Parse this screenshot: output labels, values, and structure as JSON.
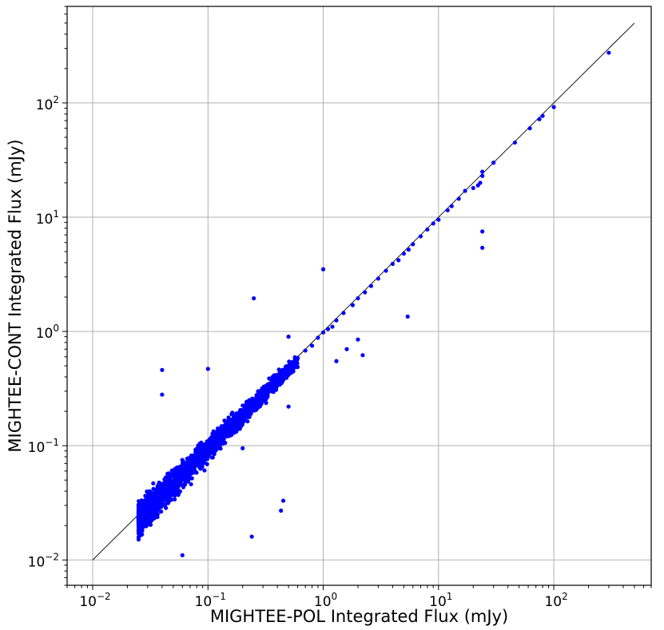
{
  "chart_data": {
    "type": "scatter",
    "title": "",
    "xlabel": "MIGHTEE-POL Integrated Flux (mJy)",
    "ylabel": "MIGHTEE-CONT Integrated Flux (mJy)",
    "x_scale": "log",
    "y_scale": "log",
    "xlim": [
      0.006,
      700
    ],
    "ylim": [
      0.006,
      700
    ],
    "x_ticks": [
      {
        "value": 0.01,
        "base": "10",
        "exp": "−2"
      },
      {
        "value": 0.1,
        "base": "10",
        "exp": "−1"
      },
      {
        "value": 1,
        "base": "10",
        "exp": "0"
      },
      {
        "value": 10,
        "base": "10",
        "exp": "1"
      },
      {
        "value": 100,
        "base": "10",
        "exp": "2"
      }
    ],
    "y_ticks": [
      {
        "value": 0.01,
        "base": "10",
        "exp": "−2"
      },
      {
        "value": 0.1,
        "base": "10",
        "exp": "−1"
      },
      {
        "value": 1,
        "base": "10",
        "exp": "0"
      },
      {
        "value": 10,
        "base": "10",
        "exp": "1"
      },
      {
        "value": 100,
        "base": "10",
        "exp": "2"
      }
    ],
    "grid": true,
    "reference_line": {
      "type": "one-to-one",
      "x": [
        0.01,
        500
      ],
      "y": [
        0.01,
        500
      ],
      "color": "#000000"
    },
    "series": [
      {
        "color": "#0000ff",
        "points": [
          [
            300,
            275
          ],
          [
            100,
            92
          ],
          [
            80,
            77
          ],
          [
            75,
            72
          ],
          [
            62,
            60
          ],
          [
            46,
            45
          ],
          [
            30,
            30
          ],
          [
            24,
            23
          ],
          [
            23,
            20
          ],
          [
            22,
            19
          ],
          [
            20,
            18
          ],
          [
            17,
            17
          ],
          [
            15,
            14.5
          ],
          [
            13,
            12.5
          ],
          [
            12,
            11.5
          ],
          [
            10,
            9.5
          ],
          [
            9,
            8.8
          ],
          [
            8,
            7.8
          ],
          [
            7,
            6.8
          ],
          [
            6,
            5.8
          ],
          [
            5.5,
            5.2
          ],
          [
            5,
            4.8
          ],
          [
            4.5,
            4.2
          ],
          [
            4,
            3.9
          ],
          [
            3.5,
            3.4
          ],
          [
            3,
            2.9
          ],
          [
            2.6,
            2.5
          ],
          [
            2.3,
            2.2
          ],
          [
            2,
            1.95
          ],
          [
            1.8,
            1.7
          ],
          [
            1.5,
            1.45
          ],
          [
            1.3,
            1.25
          ],
          [
            1.2,
            1.1
          ],
          [
            1.1,
            1.05
          ],
          [
            1,
            0.98
          ],
          [
            0.9,
            0.88
          ],
          [
            0.8,
            0.75
          ],
          [
            0.7,
            0.68
          ],
          [
            0.6,
            0.58
          ],
          [
            0.5,
            0.48
          ],
          [
            0.45,
            0.44
          ],
          [
            0.4,
            0.38
          ],
          [
            0.35,
            0.34
          ],
          [
            0.3,
            0.29
          ],
          [
            0.25,
            0.24
          ],
          [
            24,
            7.5
          ],
          [
            24,
            5.4
          ],
          [
            24,
            25
          ],
          [
            5.4,
            1.35
          ],
          [
            2.2,
            0.62
          ],
          [
            1.6,
            0.7
          ],
          [
            1.0,
            3.5
          ],
          [
            0.25,
            1.95
          ],
          [
            0.1,
            0.47
          ],
          [
            0.04,
            0.46
          ],
          [
            0.5,
            0.9
          ],
          [
            0.04,
            0.28
          ],
          [
            0.06,
            0.011
          ],
          [
            0.24,
            0.016
          ],
          [
            0.43,
            0.027
          ],
          [
            0.45,
            0.033
          ],
          [
            0.5,
            0.22
          ],
          [
            1.3,
            0.55
          ],
          [
            2.0,
            0.85
          ],
          [
            0.55,
            0.45
          ],
          [
            0.2,
            0.095
          ]
        ],
        "cloud": {
          "x_range": [
            0.025,
            0.6
          ],
          "y_range": [
            0.012,
            0.6
          ],
          "count": 2400,
          "scatter_dex": 0.13
        }
      }
    ]
  }
}
